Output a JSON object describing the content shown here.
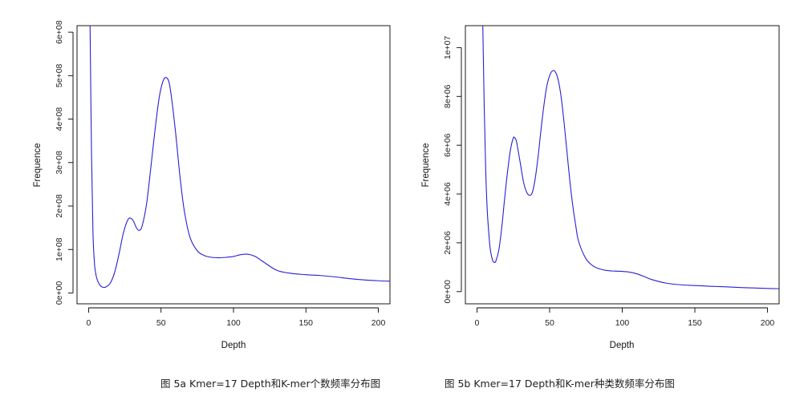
{
  "chart_data": [
    {
      "type": "line",
      "caption": "图 5a  Kmer=17 Depth和K-mer个数频率分布图",
      "xlabel": "Depth",
      "ylabel": "Frequence",
      "xlim": [
        -8,
        208
      ],
      "ylim": [
        -25000000.0,
        615000000.0
      ],
      "xticks": [
        0,
        50,
        100,
        150,
        200
      ],
      "xtick_labels": [
        "0",
        "50",
        "100",
        "150",
        "200"
      ],
      "yticks": [
        0,
        100000000.0,
        200000000.0,
        300000000.0,
        400000000.0,
        500000000.0,
        600000000.0
      ],
      "ytick_labels": [
        "0e+00",
        "1e+08",
        "2e+08",
        "3e+08",
        "4e+08",
        "5e+08",
        "6e+08"
      ],
      "line_color": "#2a1fd4",
      "series": [
        {
          "x": [
            1,
            2,
            3,
            4,
            5,
            6,
            8,
            10,
            12,
            15,
            18,
            21,
            24,
            27,
            29,
            31,
            33,
            35,
            37,
            40,
            43,
            46,
            49,
            52,
            55,
            57,
            60,
            63,
            66,
            70,
            75,
            80,
            85,
            90,
            95,
            100,
            105,
            110,
            115,
            120,
            130,
            140,
            150,
            160,
            170,
            180,
            190,
            200,
            208
          ],
          "y": [
            615000000,
            320000000,
            140000000,
            70000000,
            43000000,
            30000000,
            17000000,
            13000000,
            14000000,
            23000000,
            48000000,
            90000000,
            138000000,
            168000000,
            172000000,
            165000000,
            150000000,
            144000000,
            155000000,
            205000000,
            290000000,
            380000000,
            455000000,
            492000000,
            490000000,
            455000000,
            370000000,
            270000000,
            190000000,
            128000000,
            97000000,
            86000000,
            82000000,
            81000000,
            82000000,
            84000000,
            88000000,
            89000000,
            84000000,
            73000000,
            52000000,
            45000000,
            42000000,
            40000000,
            37000000,
            33000000,
            30000000,
            28000000,
            27000000
          ]
        }
      ]
    },
    {
      "type": "line",
      "caption": "图 5b  Kmer=17 Depth和K-mer种类数频率分布图",
      "xlabel": "Depth",
      "ylabel": "Frequence",
      "xlim": [
        -8,
        208
      ],
      "ylim": [
        -500000,
        10900000
      ],
      "xticks": [
        0,
        50,
        100,
        150,
        200
      ],
      "xtick_labels": [
        "0",
        "50",
        "100",
        "150",
        "200"
      ],
      "yticks": [
        0,
        2000000,
        4000000,
        6000000,
        8000000,
        10000000
      ],
      "ytick_labels": [
        "0e+00",
        "2e+06",
        "4e+06",
        "6e+06",
        "8e+06",
        "1e+07"
      ],
      "line_color": "#2a1fd4",
      "series": [
        {
          "x": [
            4,
            5,
            6,
            7,
            8,
            9,
            10,
            11,
            12,
            13,
            15,
            17,
            19,
            21,
            23,
            25,
            26,
            27,
            28,
            30,
            32,
            34,
            36,
            38,
            40,
            42,
            44,
            46,
            48,
            50,
            52,
            54,
            56,
            58,
            60,
            62,
            64,
            66,
            68,
            70,
            75,
            80,
            85,
            90,
            95,
            100,
            105,
            110,
            115,
            120,
            130,
            140,
            150,
            160,
            170,
            180,
            190,
            200,
            208
          ],
          "y": [
            10900000,
            7500000,
            5000000,
            3400000,
            2500000,
            1800000,
            1450000,
            1250000,
            1200000,
            1250000,
            1700000,
            2600000,
            3800000,
            4900000,
            5800000,
            6300000,
            6300000,
            6200000,
            5900000,
            5200000,
            4500000,
            4100000,
            3950000,
            4050000,
            4600000,
            5500000,
            6600000,
            7600000,
            8400000,
            8850000,
            9050000,
            9000000,
            8650000,
            7950000,
            6900000,
            5700000,
            4500000,
            3500000,
            2700000,
            2050000,
            1350000,
            1050000,
            920000,
            860000,
            840000,
            830000,
            800000,
            730000,
            620000,
            500000,
            350000,
            280000,
            250000,
            220000,
            200000,
            170000,
            150000,
            130000,
            120000
          ]
        }
      ]
    }
  ]
}
